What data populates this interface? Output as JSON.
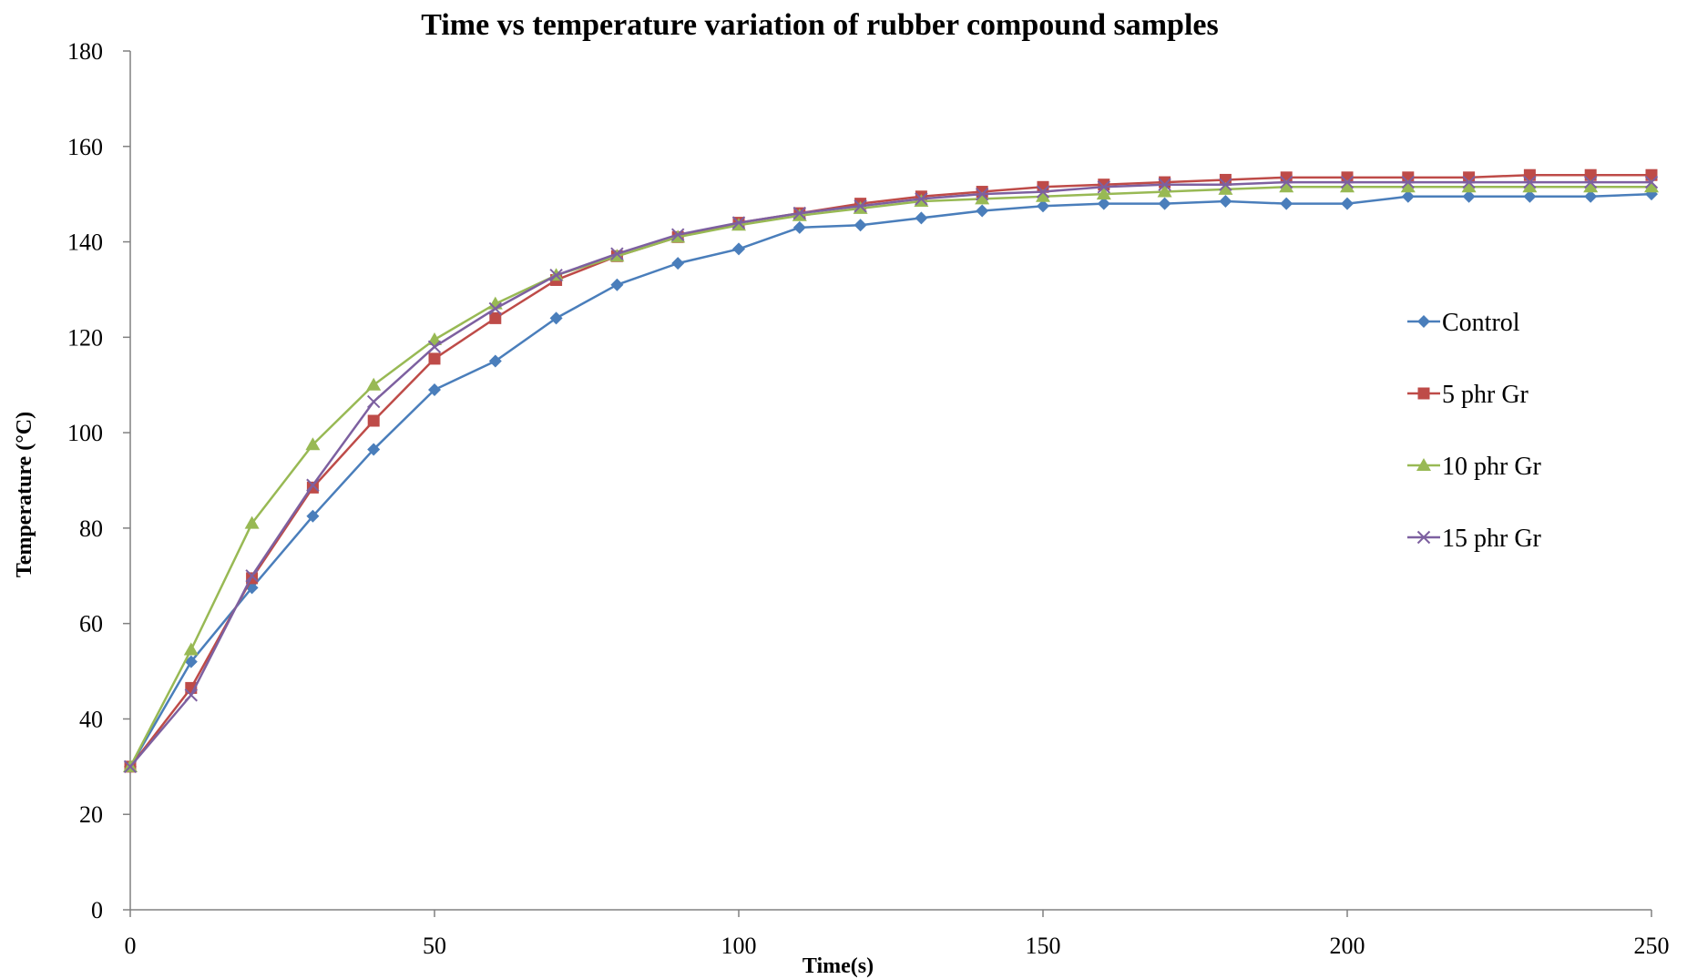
{
  "chart_data": {
    "type": "line",
    "title": "Time vs temperature variation of rubber compound samples",
    "xlabel": "Time(s)",
    "ylabel": "Temperature (°C)",
    "xlim": [
      0,
      250
    ],
    "ylim": [
      0,
      180
    ],
    "xticks": [
      0,
      50,
      100,
      150,
      200,
      250
    ],
    "yticks": [
      0,
      20,
      40,
      60,
      80,
      100,
      120,
      140,
      160,
      180
    ],
    "grid": false,
    "legend_position": "right",
    "x": [
      0,
      10,
      20,
      30,
      40,
      50,
      60,
      70,
      80,
      90,
      100,
      110,
      120,
      130,
      140,
      150,
      160,
      170,
      180,
      190,
      200,
      210,
      220,
      230,
      240,
      250
    ],
    "series": [
      {
        "name": "Control",
        "color": "#4a7ebb",
        "marker": "diamond",
        "values": [
          30,
          52,
          67.5,
          82.5,
          96.5,
          109,
          115,
          124,
          131,
          135.5,
          138.5,
          143,
          143.5,
          145,
          146.5,
          147.5,
          148,
          148,
          148.5,
          148,
          148,
          149.5,
          149.5,
          149.5,
          149.5,
          150
        ]
      },
      {
        "name": "5 phr Gr",
        "color": "#be4b48",
        "marker": "square",
        "values": [
          30,
          46.5,
          69.5,
          88.5,
          102.5,
          115.5,
          124,
          132,
          137,
          141,
          144,
          146,
          148,
          149.5,
          150.5,
          151.5,
          152,
          152.5,
          153,
          153.5,
          153.5,
          153.5,
          153.5,
          154,
          154,
          154
        ]
      },
      {
        "name": "10 phr Gr",
        "color": "#98b954",
        "marker": "triangle",
        "values": [
          30,
          54.5,
          81,
          97.5,
          110,
          119.5,
          127,
          133,
          137,
          141,
          143.5,
          145.5,
          147,
          148.5,
          149,
          149.5,
          150,
          150.5,
          151,
          151.5,
          151.5,
          151.5,
          151.5,
          151.5,
          151.5,
          151.5
        ]
      },
      {
        "name": "15 phr Gr",
        "color": "#7d60a0",
        "marker": "x",
        "values": [
          30,
          45,
          70,
          89,
          106.5,
          118,
          126,
          133,
          137.5,
          141.5,
          144,
          146,
          147.5,
          149,
          150,
          150.5,
          151.5,
          152,
          152,
          152.5,
          152.5,
          152.5,
          152.5,
          152.5,
          152.5,
          152.5
        ]
      }
    ]
  }
}
